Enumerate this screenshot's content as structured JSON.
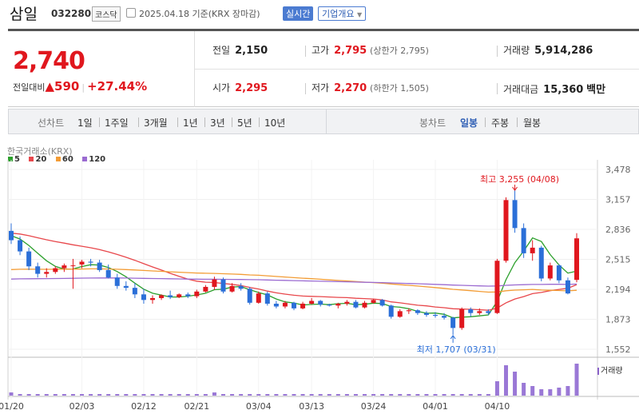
{
  "header": {
    "name": "삼일",
    "code": "032280",
    "market": "코스닥",
    "date": "2025.04.18 기준(KRX 장마감)",
    "realtime": "실시간",
    "company_info": "기업개요"
  },
  "quote": {
    "price": "2,740",
    "change_label": "전일대비",
    "change_value": "▲590",
    "change_pct": "+27.44%",
    "prev_label": "전일",
    "prev": "2,150",
    "open_label": "시가",
    "open": "2,295",
    "high_label": "고가",
    "high": "2,795",
    "upper_limit": "(상한가 2,795)",
    "low_label": "저가",
    "low": "2,270",
    "lower_limit": "(하한가 1,505)",
    "volume_label": "거래량",
    "volume": "5,914,286",
    "amount_label": "거래대금",
    "amount": "15,360",
    "amount_unit": "백만"
  },
  "tabs": {
    "line_label": "선차트",
    "line_periods": [
      "1일",
      "1주일",
      "3개월",
      "1년",
      "3년",
      "5년",
      "10년"
    ],
    "candle_label": "봉차트",
    "candle_periods": [
      "일봉",
      "주봉",
      "월봉"
    ],
    "candle_active": "일봉"
  },
  "chart_meta": {
    "exchange": "한국거래소(KRX)",
    "ma": [
      {
        "label": "5",
        "color": "#2ca02c"
      },
      {
        "label": "20",
        "color": "#e8474b"
      },
      {
        "label": "60",
        "color": "#f39c35"
      },
      {
        "label": "120",
        "color": "#9b6bd1"
      }
    ],
    "high_note": "최고 3,255 (04/08)",
    "low_note": "최저 1,707 (03/31)",
    "volume_label": "거래량",
    "up_color": "#e0171e",
    "down_color": "#2b6fd8"
  },
  "chart_data": {
    "type": "candlestick",
    "y_ticks": [
      "3,478",
      "3,157",
      "2,836",
      "2,515",
      "2,194",
      "1,873",
      "1,552"
    ],
    "ylim": [
      1552,
      3478
    ],
    "x_ticks": [
      "01/20",
      "02/03",
      "02/12",
      "02/21",
      "03/04",
      "03/13",
      "03/24",
      "04/01",
      "04/10"
    ],
    "candles": [
      [
        2820,
        2900,
        2680,
        2720
      ],
      [
        2720,
        2760,
        2560,
        2600
      ],
      [
        2600,
        2640,
        2400,
        2440
      ],
      [
        2440,
        2480,
        2320,
        2360
      ],
      [
        2360,
        2420,
        2320,
        2380
      ],
      [
        2380,
        2440,
        2360,
        2420
      ],
      [
        2420,
        2470,
        2380,
        2450
      ],
      [
        2450,
        2520,
        2200,
        2450
      ],
      [
        2460,
        2510,
        2420,
        2490
      ],
      [
        2490,
        2520,
        2440,
        2480
      ],
      [
        2480,
        2510,
        2380,
        2400
      ],
      [
        2400,
        2460,
        2310,
        2320
      ],
      [
        2320,
        2360,
        2200,
        2230
      ],
      [
        2230,
        2280,
        2180,
        2210
      ],
      [
        2210,
        2260,
        2100,
        2140
      ],
      [
        2140,
        2200,
        2040,
        2080
      ],
      [
        2080,
        2130,
        2040,
        2100
      ],
      [
        2100,
        2140,
        2080,
        2130
      ],
      [
        2130,
        2180,
        2090,
        2110
      ],
      [
        2110,
        2150,
        2100,
        2140
      ],
      [
        2140,
        2160,
        2100,
        2120
      ],
      [
        2120,
        2190,
        2100,
        2170
      ],
      [
        2170,
        2240,
        2160,
        2220
      ],
      [
        2220,
        2330,
        2190,
        2300
      ],
      [
        2300,
        2320,
        2150,
        2170
      ],
      [
        2170,
        2260,
        2160,
        2230
      ],
      [
        2230,
        2260,
        2180,
        2200
      ],
      [
        2200,
        2220,
        2030,
        2050
      ],
      [
        2050,
        2170,
        2040,
        2150
      ],
      [
        2150,
        2170,
        2020,
        2040
      ],
      [
        2040,
        2070,
        1990,
        2010
      ],
      [
        2010,
        2070,
        1990,
        2050
      ],
      [
        2050,
        2060,
        1970,
        1990
      ],
      [
        1990,
        2060,
        1980,
        2040
      ],
      [
        2040,
        2100,
        2030,
        2070
      ],
      [
        2070,
        2080,
        2010,
        2030
      ],
      [
        2030,
        2040,
        2010,
        2020
      ],
      [
        2020,
        2050,
        1990,
        2040
      ],
      [
        2040,
        2080,
        2020,
        2060
      ],
      [
        2060,
        2080,
        1990,
        2000
      ],
      [
        2000,
        2070,
        1990,
        2050
      ],
      [
        2050,
        2090,
        2040,
        2080
      ],
      [
        2080,
        2090,
        2010,
        2020
      ],
      [
        2020,
        2030,
        1880,
        1900
      ],
      [
        1900,
        1980,
        1890,
        1960
      ],
      [
        1960,
        1990,
        1930,
        1970
      ],
      [
        1970,
        1980,
        1920,
        1940
      ],
      [
        1940,
        1960,
        1900,
        1920
      ],
      [
        1920,
        1950,
        1890,
        1910
      ],
      [
        1910,
        1940,
        1870,
        1890
      ],
      [
        1890,
        1900,
        1707,
        1780
      ],
      [
        1780,
        2000,
        1760,
        1980
      ],
      [
        1980,
        2000,
        1900,
        1940
      ],
      [
        1940,
        1990,
        1920,
        1960
      ],
      [
        1960,
        1980,
        1920,
        1940
      ],
      [
        1940,
        2520,
        1930,
        2500
      ],
      [
        2500,
        3180,
        2480,
        3150
      ],
      [
        3150,
        3255,
        2800,
        2850
      ],
      [
        2850,
        2900,
        2530,
        2580
      ],
      [
        2580,
        2720,
        2500,
        2640
      ],
      [
        2640,
        2660,
        2280,
        2310
      ],
      [
        2310,
        2480,
        2290,
        2450
      ],
      [
        2450,
        2460,
        2260,
        2290
      ],
      [
        2290,
        2320,
        2140,
        2150
      ],
      [
        2295,
        2795,
        2270,
        2740
      ]
    ],
    "volume_series_label": "거래량",
    "volume": [
      2,
      1,
      1,
      1,
      1,
      1,
      1,
      1,
      1,
      1,
      1,
      1,
      1,
      1,
      1,
      1,
      1,
      1,
      1,
      1,
      1,
      1,
      1,
      2,
      1,
      1,
      1,
      1,
      1,
      1,
      1,
      1,
      1,
      1,
      1,
      1,
      1,
      1,
      1,
      1,
      1,
      1,
      1,
      1,
      1,
      1,
      1,
      1,
      1,
      1,
      1,
      1,
      1,
      1,
      1,
      9,
      19,
      15,
      8,
      6,
      4,
      4,
      5,
      6,
      20
    ]
  }
}
